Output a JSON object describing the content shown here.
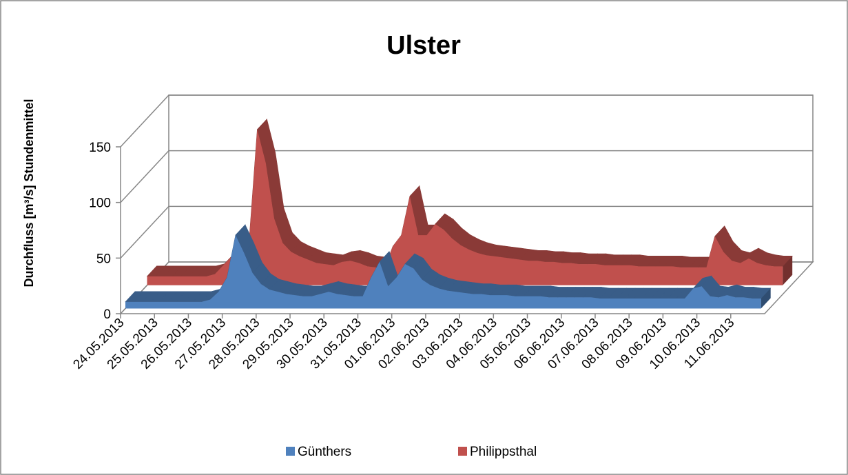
{
  "chart_data": {
    "type": "area3d",
    "title": "Ulster",
    "y_label": "Durchfluss [m³/s] Stundenmittel",
    "categories": [
      "24.05.2013",
      null,
      null,
      null,
      "25.05.2013",
      null,
      null,
      null,
      "26.05.2013",
      null,
      null,
      null,
      "27.05.2013",
      null,
      null,
      null,
      "28.05.2013",
      null,
      null,
      null,
      "29.05.2013",
      null,
      null,
      null,
      "30.05.2013",
      null,
      null,
      null,
      "31.05.2013",
      null,
      null,
      null,
      "01.06.2013",
      null,
      null,
      null,
      "02.06.2013",
      null,
      null,
      null,
      "03.06.2013",
      null,
      null,
      null,
      "04.06.2013",
      null,
      null,
      null,
      "05.06.2013",
      null,
      null,
      null,
      "06.06.2013",
      null,
      null,
      null,
      "07.06.2013",
      null,
      null,
      null,
      "08.06.2013",
      null,
      null,
      null,
      "09.06.2013",
      null,
      null,
      null,
      "10.06.2013",
      null,
      null,
      null,
      "11.06.2013",
      null,
      null,
      null
    ],
    "series": [
      {
        "name": "Günthers",
        "color": "#4f81bd",
        "values": [
          6,
          6,
          6,
          6,
          6,
          6,
          6,
          6,
          6,
          6,
          8,
          15,
          28,
          66,
          50,
          32,
          22,
          17,
          15,
          13,
          12,
          11,
          11,
          13,
          15,
          13,
          12,
          11,
          11,
          28,
          42,
          20,
          28,
          40,
          36,
          26,
          21,
          18,
          16,
          15,
          14,
          13,
          13,
          12,
          12,
          12,
          11,
          11,
          11,
          11,
          10,
          10,
          10,
          10,
          10,
          10,
          9,
          9,
          9,
          9,
          9,
          9,
          9,
          9,
          9,
          9,
          9,
          18,
          20,
          11,
          10,
          12,
          10,
          10,
          9,
          9
        ]
      },
      {
        "name": "Philippsthal",
        "color": "#c0504d",
        "values": [
          8,
          8,
          8,
          8,
          8,
          8,
          8,
          8,
          10,
          18,
          26,
          30,
          36,
          140,
          110,
          60,
          38,
          30,
          26,
          23,
          20,
          19,
          18,
          21,
          22,
          20,
          17,
          16,
          15,
          35,
          45,
          80,
          45,
          45,
          55,
          50,
          42,
          36,
          32,
          29,
          27,
          26,
          25,
          24,
          23,
          22,
          22,
          21,
          21,
          20,
          20,
          19,
          19,
          19,
          18,
          18,
          18,
          18,
          17,
          17,
          17,
          17,
          17,
          16,
          16,
          16,
          16,
          44,
          30,
          22,
          20,
          24,
          20,
          18,
          17,
          17
        ]
      }
    ],
    "ylim": [
      0,
      150
    ],
    "yticks": [
      0,
      50,
      100,
      150
    ],
    "grid": true,
    "legend": "bottom"
  }
}
